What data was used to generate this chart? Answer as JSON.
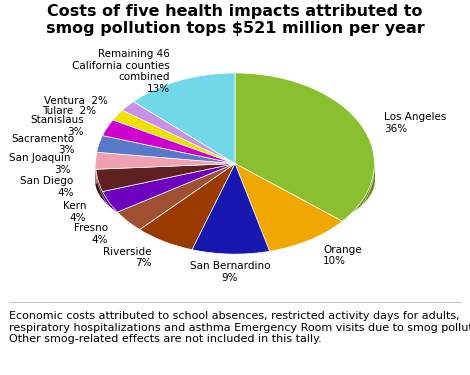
{
  "title": "Costs of five health impacts attributed to\nsmog pollution tops $521 million per year",
  "footnote": "Economic costs attributed to school absences, restricted activity days for adults,\nrespiratory hospitalizations and asthma Emergency Room visits due to smog pollution.\nOther smog-related effects are not included in this tally.",
  "slices": [
    {
      "label": "Los Angeles\n36%",
      "pct": 36,
      "color": "#8abf30",
      "dark": "#6a9020"
    },
    {
      "label": "Orange\n10%",
      "pct": 10,
      "color": "#f0a800",
      "dark": "#c08000"
    },
    {
      "label": "San Bernardino\n9%",
      "pct": 9,
      "color": "#1818b0",
      "dark": "#101080"
    },
    {
      "label": "Riverside\n7%",
      "pct": 7,
      "color": "#9b3a00",
      "dark": "#6b2800"
    },
    {
      "label": "Fresno\n4%",
      "pct": 4,
      "color": "#a05030",
      "dark": "#703820"
    },
    {
      "label": "Kern\n4%",
      "pct": 4,
      "color": "#7000c0",
      "dark": "#500090"
    },
    {
      "label": "San Diego\n4%",
      "pct": 4,
      "color": "#602020",
      "dark": "#401010"
    },
    {
      "label": "San Joaquin\n3%",
      "pct": 3,
      "color": "#f0a0b0",
      "dark": "#c07080"
    },
    {
      "label": "Sacramento\n3%",
      "pct": 3,
      "color": "#5878c8",
      "dark": "#3858a8"
    },
    {
      "label": "Stanislaus\n3%",
      "pct": 3,
      "color": "#d000d0",
      "dark": "#a000a0"
    },
    {
      "label": "Tulare  2%",
      "pct": 2,
      "color": "#f0e000",
      "dark": "#c0b000"
    },
    {
      "label": "Ventura  2%",
      "pct": 2,
      "color": "#c890e8",
      "dark": "#9860c0"
    },
    {
      "label": "Remaining 46\nCalifornia counties\ncombined\n13%",
      "pct": 13,
      "color": "#70d8e8",
      "dark": "#40a8b8"
    }
  ],
  "background_color": "#ffffff",
  "title_fontsize": 11.5,
  "footnote_fontsize": 8.0,
  "startangle": 90,
  "label_fontsize": 7.5
}
